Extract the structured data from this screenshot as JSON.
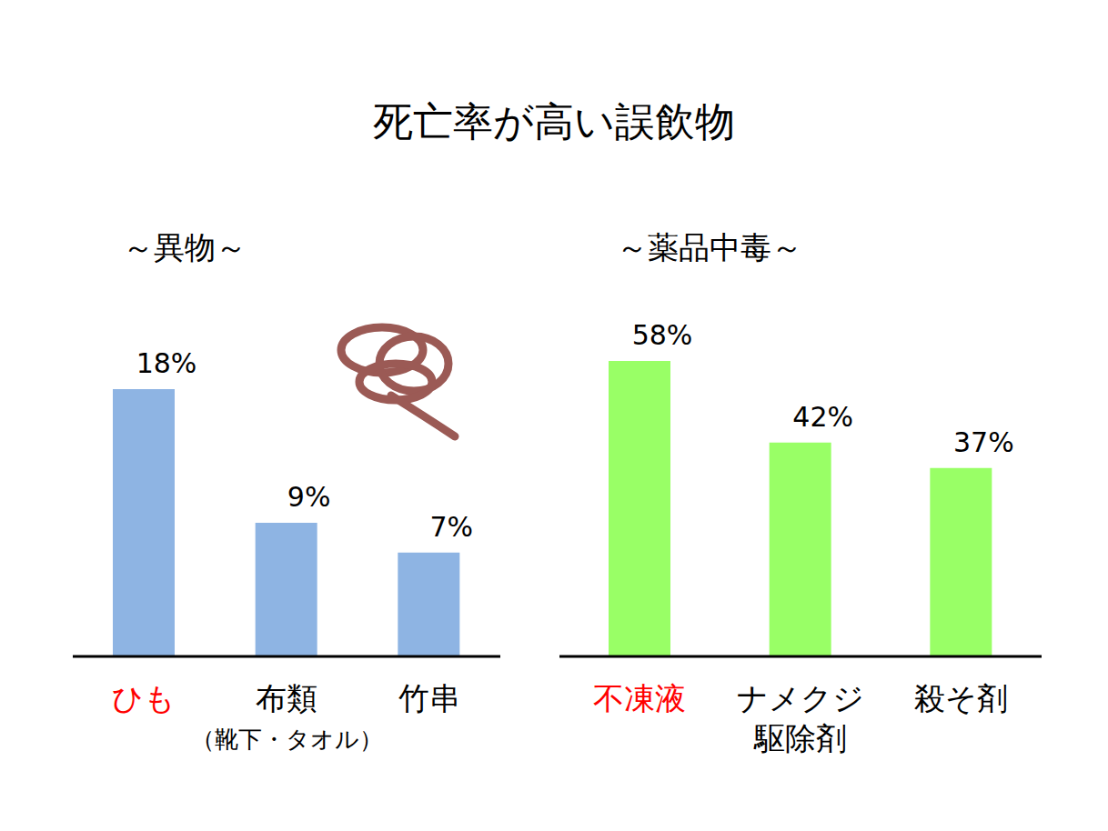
{
  "title": "死亡率が高い誤飲物",
  "chart_data": [
    {
      "type": "bar",
      "subtitle": "～異物～",
      "categories": [
        "ひも",
        "布類",
        "竹串"
      ],
      "category_notes": [
        null,
        "（靴下・タオル）",
        null
      ],
      "values": [
        18,
        9,
        7
      ],
      "value_labels": [
        "18%",
        "9%",
        "7%"
      ],
      "color": "#8eb4e3",
      "data_labels": true,
      "tick_labels": "x",
      "grid": false
    },
    {
      "type": "bar",
      "subtitle": "～薬品中毒～",
      "categories": [
        "不凍液",
        "ナメクジ\n駆除剤",
        "殺そ剤"
      ],
      "values": [
        58,
        42,
        37
      ],
      "value_labels": [
        "58%",
        "42%",
        "37%"
      ],
      "color": "#99ff66",
      "data_labels": true,
      "tick_labels": "x",
      "grid": false
    }
  ]
}
